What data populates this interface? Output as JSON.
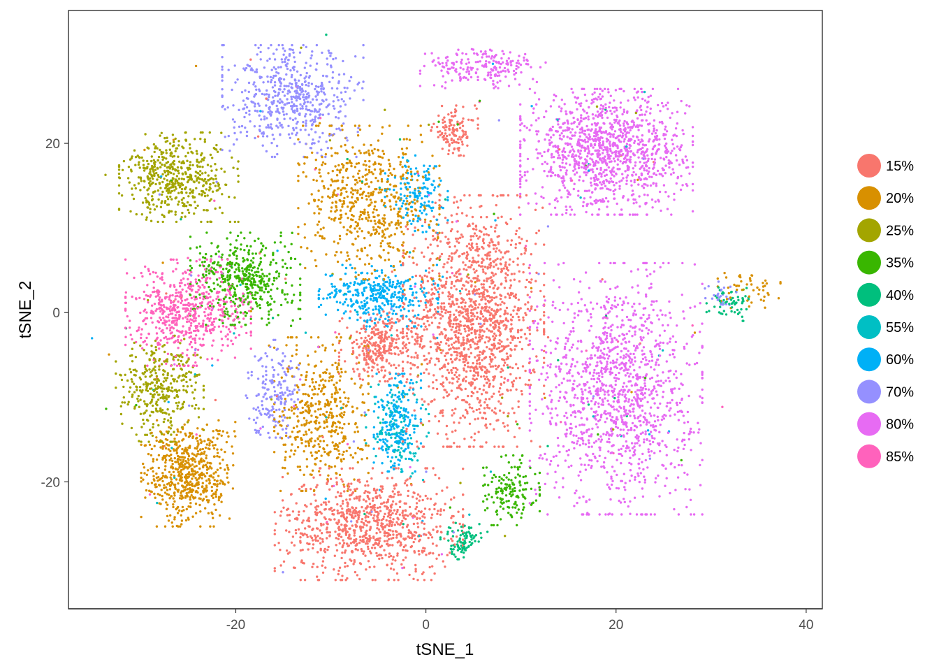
{
  "chart_data": {
    "type": "scatter",
    "title": "",
    "xlabel": "tSNE_1",
    "ylabel": "tSNE_2",
    "xlim": [
      -37.6,
      41.7
    ],
    "ylim": [
      -35.0,
      35.7
    ],
    "xticks": [
      -20,
      0,
      20,
      40
    ],
    "yticks": [
      -20,
      0,
      20
    ],
    "grid": false,
    "legend_position": "right",
    "legend": [
      {
        "name": "15%",
        "color": "#F8766D"
      },
      {
        "name": "20%",
        "color": "#D89000"
      },
      {
        "name": "25%",
        "color": "#A3A500"
      },
      {
        "name": "35%",
        "color": "#39B600"
      },
      {
        "name": "40%",
        "color": "#00BF7D"
      },
      {
        "name": "55%",
        "color": "#00BFC4"
      },
      {
        "name": "60%",
        "color": "#00B0F6"
      },
      {
        "name": "70%",
        "color": "#9590FF"
      },
      {
        "name": "80%",
        "color": "#E76BF3"
      },
      {
        "name": "85%",
        "color": "#FF62BC"
      }
    ],
    "clusters_approx": [
      {
        "group": "15%",
        "center": [
          5,
          -1
        ],
        "spread": [
          4.5,
          9
        ],
        "n": 1500
      },
      {
        "group": "15%",
        "center": [
          -6,
          -25
        ],
        "spread": [
          6,
          4
        ],
        "n": 900
      },
      {
        "group": "15%",
        "center": [
          -5,
          -4
        ],
        "spread": [
          2.5,
          2.5
        ],
        "n": 300
      },
      {
        "group": "15%",
        "center": [
          3,
          21.5
        ],
        "spread": [
          1.5,
          1.8
        ],
        "n": 120
      },
      {
        "group": "80%",
        "center": [
          19,
          19
        ],
        "spread": [
          5.5,
          4.5
        ],
        "n": 1200
      },
      {
        "group": "80%",
        "center": [
          6,
          29
        ],
        "spread": [
          4,
          1.5
        ],
        "n": 200
      },
      {
        "group": "80%",
        "center": [
          20,
          -9
        ],
        "spread": [
          5.5,
          9
        ],
        "n": 1300
      },
      {
        "group": "20%",
        "center": [
          -25,
          -19
        ],
        "spread": [
          3,
          3.8
        ],
        "n": 600
      },
      {
        "group": "20%",
        "center": [
          -6,
          13
        ],
        "spread": [
          4.5,
          5.5
        ],
        "n": 600
      },
      {
        "group": "20%",
        "center": [
          -11,
          -12
        ],
        "spread": [
          3,
          5.5
        ],
        "n": 450
      },
      {
        "group": "25%",
        "center": [
          -26,
          16
        ],
        "spread": [
          3.8,
          3.2
        ],
        "n": 500
      },
      {
        "group": "25%",
        "center": [
          -28,
          -9
        ],
        "spread": [
          2.8,
          3.8
        ],
        "n": 350
      },
      {
        "group": "70%",
        "center": [
          -14,
          25
        ],
        "spread": [
          4.5,
          4
        ],
        "n": 550
      },
      {
        "group": "70%",
        "center": [
          -16,
          -9
        ],
        "spread": [
          1.8,
          3.5
        ],
        "n": 170
      },
      {
        "group": "85%",
        "center": [
          -25,
          0
        ],
        "spread": [
          4,
          3.8
        ],
        "n": 600
      },
      {
        "group": "35%",
        "center": [
          -19,
          4
        ],
        "spread": [
          3.5,
          3.3
        ],
        "n": 450
      },
      {
        "group": "35%",
        "center": [
          9,
          -21
        ],
        "spread": [
          1.8,
          2.5
        ],
        "n": 150
      },
      {
        "group": "60%",
        "center": [
          -5,
          2
        ],
        "spread": [
          3.8,
          2.2
        ],
        "n": 350
      },
      {
        "group": "60%",
        "center": [
          -3,
          -13
        ],
        "spread": [
          1.5,
          3.5
        ],
        "n": 200
      },
      {
        "group": "60%",
        "center": [
          -1,
          14
        ],
        "spread": [
          2,
          3
        ],
        "n": 150
      },
      {
        "group": "55%",
        "center": [
          -3,
          -14
        ],
        "spread": [
          2,
          3.5
        ],
        "n": 120
      },
      {
        "group": "40%",
        "center": [
          4,
          -27
        ],
        "spread": [
          1.5,
          1.3
        ],
        "n": 90
      },
      {
        "group": "40%",
        "center": [
          32,
          1
        ],
        "spread": [
          1.5,
          1.2
        ],
        "n": 60
      },
      {
        "group": "20%",
        "center": [
          34,
          3
        ],
        "spread": [
          2,
          1.5
        ],
        "n": 50
      },
      {
        "group": "70%",
        "center": [
          31,
          2
        ],
        "spread": [
          1,
          1
        ],
        "n": 25
      }
    ]
  }
}
